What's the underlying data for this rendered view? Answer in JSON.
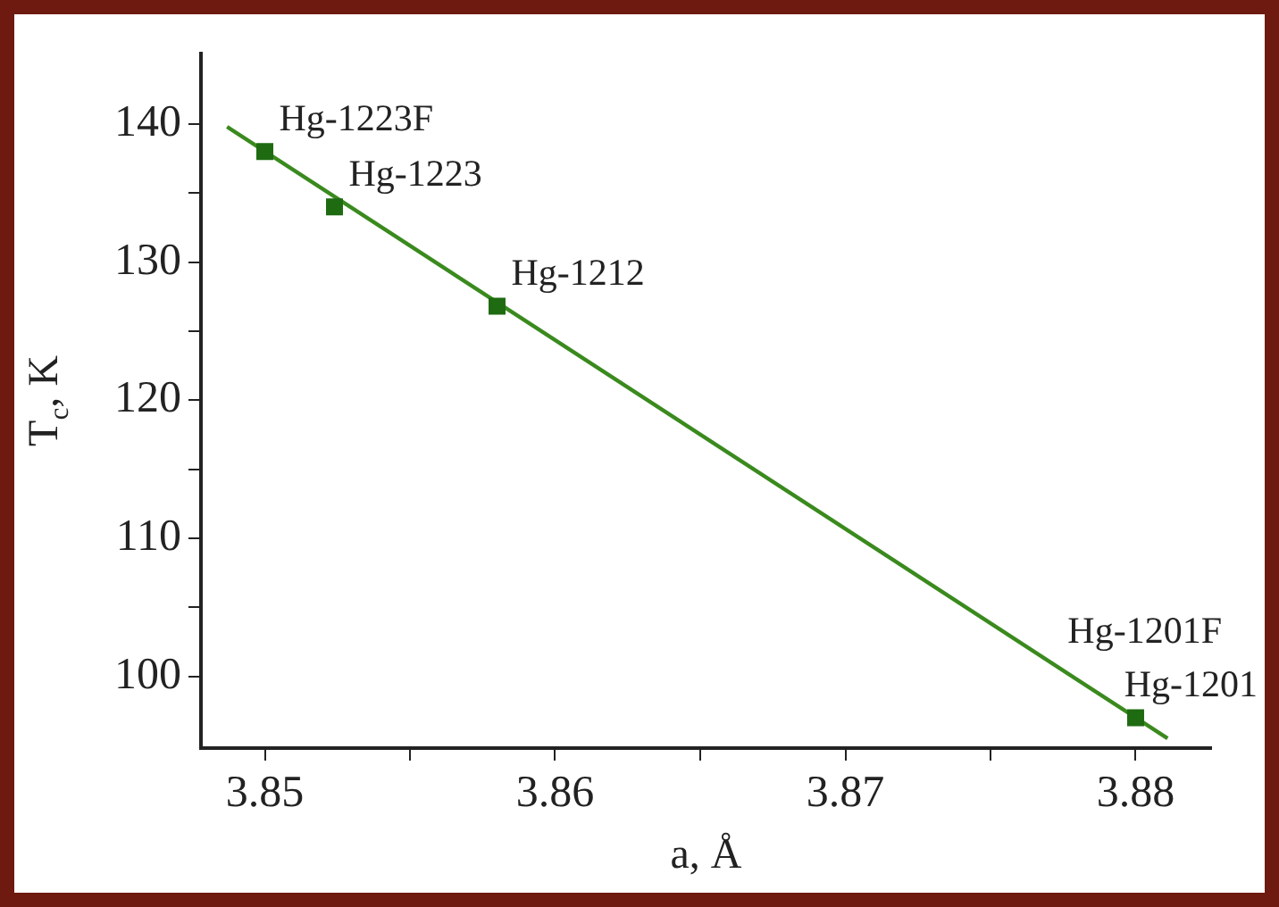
{
  "chart_data": {
    "type": "scatter",
    "xlabel": "a, Å",
    "ylabel": "T$_{c}$, K",
    "xlim": [
      3.8478,
      3.8826
    ],
    "ylim": [
      94.8,
      145.1
    ],
    "xticks": [
      3.85,
      {
        "value": 3.855,
        "label": null
      },
      3.86,
      {
        "value": 3.865,
        "label": null
      },
      3.87,
      {
        "value": 3.875,
        "label": null
      },
      3.88
    ],
    "yticks": [
      100,
      {
        "value": 105,
        "label": null
      },
      110,
      {
        "value": 115,
        "label": null
      },
      120,
      {
        "value": 125,
        "label": null
      },
      130,
      {
        "value": 135,
        "label": null
      },
      140
    ],
    "grid": false,
    "legend": false,
    "marker": "square",
    "series": [
      {
        "color": "#1f6b12",
        "x": [
          3.85,
          3.8524,
          3.858,
          3.88
        ],
        "values": [
          138.0,
          134.0,
          126.8,
          97.0
        ]
      },
      {
        "type": "line",
        "color": "#3a8a1e",
        "marker": "none",
        "line_style": "solid",
        "x": [
          3.8487,
          3.8811
        ],
        "values": [
          139.8,
          95.5
        ]
      }
    ],
    "annotations": [
      {
        "text": "Hg-1223F",
        "x": 3.85,
        "y": 138.0
      },
      {
        "text": "Hg-1223",
        "x": 3.8524,
        "y": 134.0
      },
      {
        "text": "Hg-1212",
        "x": 3.858,
        "y": 126.8
      },
      {
        "text": "Hg-1201F",
        "x": 3.88,
        "y": 97.0
      },
      {
        "text": "Hg-1201",
        "x": 3.88,
        "y": 97.0
      }
    ]
  }
}
